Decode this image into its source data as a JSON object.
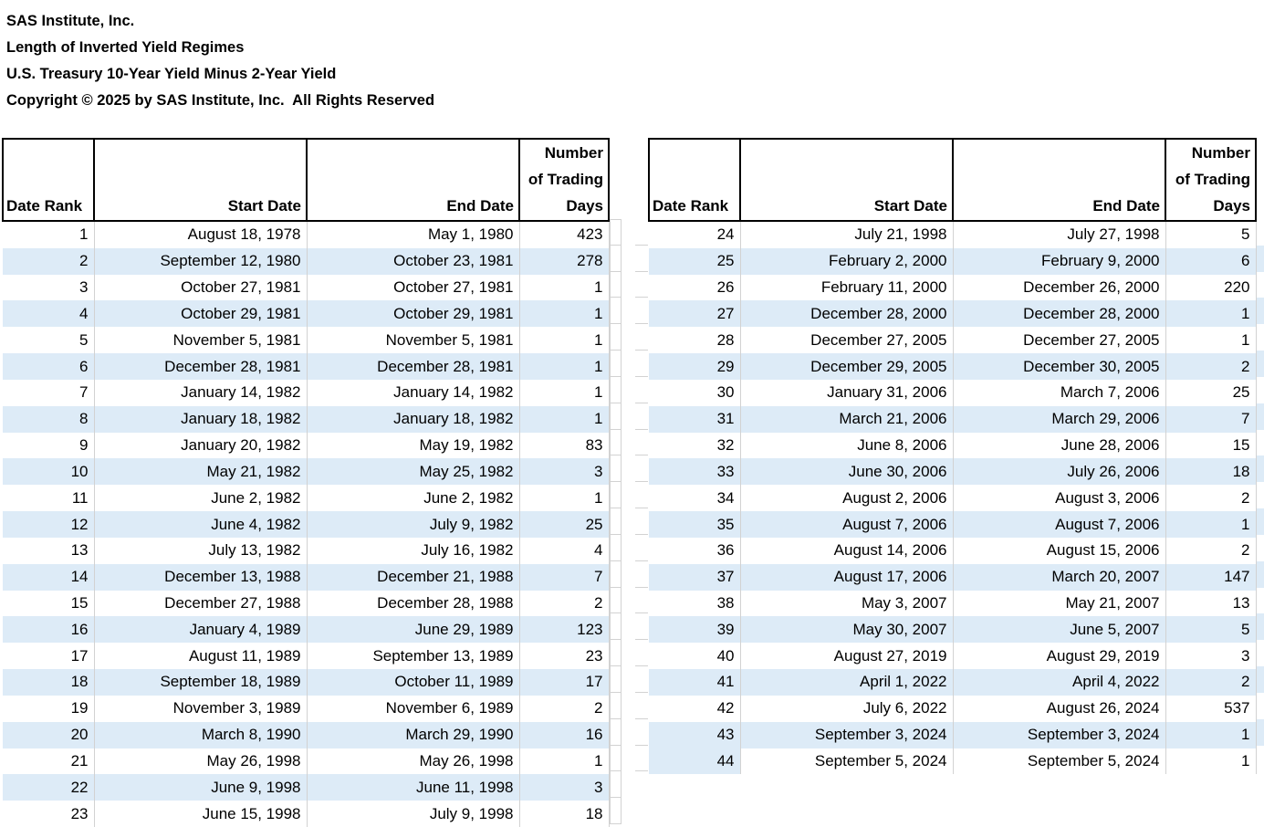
{
  "title_block": {
    "lines": [
      "SAS Institute, Inc.",
      "Length of Inverted Yield Regimes",
      "U.S. Treasury 10-Year Yield Minus 2-Year Yield",
      "Copyright © 2025 by SAS Institute, Inc.  All Rights Reserved"
    ]
  },
  "columns": [
    "Date Rank",
    "Start Date",
    "End Date",
    "Number\nof Trading\nDays"
  ],
  "tables": [
    {
      "name": "regimes-1-to-23",
      "last_row_rank_cell_shaded": false,
      "rows": [
        [
          1,
          "August 18, 1978",
          "May 1, 1980",
          423
        ],
        [
          2,
          "September 12, 1980",
          "October 23, 1981",
          278
        ],
        [
          3,
          "October 27, 1981",
          "October 27, 1981",
          1
        ],
        [
          4,
          "October 29, 1981",
          "October 29, 1981",
          1
        ],
        [
          5,
          "November 5, 1981",
          "November 5, 1981",
          1
        ],
        [
          6,
          "December 28, 1981",
          "December 28, 1981",
          1
        ],
        [
          7,
          "January 14, 1982",
          "January 14, 1982",
          1
        ],
        [
          8,
          "January 18, 1982",
          "January 18, 1982",
          1
        ],
        [
          9,
          "January 20, 1982",
          "May 19, 1982",
          83
        ],
        [
          10,
          "May 21, 1982",
          "May 25, 1982",
          3
        ],
        [
          11,
          "June 2, 1982",
          "June 2, 1982",
          1
        ],
        [
          12,
          "June 4, 1982",
          "July 9, 1982",
          25
        ],
        [
          13,
          "July 13, 1982",
          "July 16, 1982",
          4
        ],
        [
          14,
          "December 13, 1988",
          "December 21, 1988",
          7
        ],
        [
          15,
          "December 27, 1988",
          "December 28, 1988",
          2
        ],
        [
          16,
          "January 4, 1989",
          "June 29, 1989",
          123
        ],
        [
          17,
          "August 11, 1989",
          "September 13, 1989",
          23
        ],
        [
          18,
          "September 18, 1989",
          "October 11, 1989",
          17
        ],
        [
          19,
          "November 3, 1989",
          "November 6, 1989",
          2
        ],
        [
          20,
          "March 8, 1990",
          "March 29, 1990",
          16
        ],
        [
          21,
          "May 26, 1998",
          "May 26, 1998",
          1
        ],
        [
          22,
          "June 9, 1998",
          "June 11, 1998",
          3
        ],
        [
          23,
          "June 15, 1998",
          "July 9, 1998",
          18
        ]
      ]
    },
    {
      "name": "regimes-24-to-44",
      "last_row_rank_cell_shaded": true,
      "rows": [
        [
          24,
          "July 21, 1998",
          "July 27, 1998",
          5
        ],
        [
          25,
          "February 2, 2000",
          "February 9, 2000",
          6
        ],
        [
          26,
          "February 11, 2000",
          "December 26, 2000",
          220
        ],
        [
          27,
          "December 28, 2000",
          "December 28, 2000",
          1
        ],
        [
          28,
          "December 27, 2005",
          "December 27, 2005",
          1
        ],
        [
          29,
          "December 29, 2005",
          "December 30, 2005",
          2
        ],
        [
          30,
          "January 31, 2006",
          "March 7, 2006",
          25
        ],
        [
          31,
          "March 21, 2006",
          "March 29, 2006",
          7
        ],
        [
          32,
          "June 8, 2006",
          "June 28, 2006",
          15
        ],
        [
          33,
          "June 30, 2006",
          "July 26, 2006",
          18
        ],
        [
          34,
          "August 2, 2006",
          "August 3, 2006",
          2
        ],
        [
          35,
          "August 7, 2006",
          "August 7, 2006",
          1
        ],
        [
          36,
          "August 14, 2006",
          "August 15, 2006",
          2
        ],
        [
          37,
          "August 17, 2006",
          "March 20, 2007",
          147
        ],
        [
          38,
          "May 3, 2007",
          "May 21, 2007",
          13
        ],
        [
          39,
          "May 30, 2007",
          "June 5, 2007",
          5
        ],
        [
          40,
          "August 27, 2019",
          "August 29, 2019",
          3
        ],
        [
          41,
          "April 1, 2022",
          "April 4, 2022",
          2
        ],
        [
          42,
          "July 6, 2022",
          "August 26, 2024",
          537
        ],
        [
          43,
          "September 3, 2024",
          "September 3, 2024",
          1
        ],
        [
          44,
          "September 5, 2024",
          "September 5, 2024",
          1
        ]
      ]
    }
  ],
  "colors": {
    "banding": "#ddebf7",
    "gridline": "#d2d2d2",
    "border": "#000000",
    "text": "#000000",
    "background": "#ffffff"
  }
}
